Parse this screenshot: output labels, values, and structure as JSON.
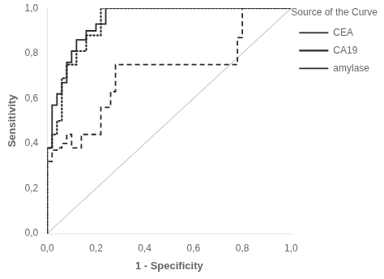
{
  "chart_data": {
    "type": "line",
    "xlabel": "1 - Specificity",
    "ylabel": "Sensitivity",
    "legend_title": "Source of the Curve",
    "legend": "right",
    "grid": false,
    "xlim": [
      0,
      1.0
    ],
    "ylim": [
      0,
      1.0
    ],
    "xticks": [
      {
        "value": 0.0,
        "label": "0,0"
      },
      {
        "value": 0.2,
        "label": "0,2"
      },
      {
        "value": 0.4,
        "label": "0,4"
      },
      {
        "value": 0.6,
        "label": "0,6"
      },
      {
        "value": 0.8,
        "label": "0,8"
      },
      {
        "value": 1.0,
        "label": "1,0"
      }
    ],
    "yticks": [
      {
        "value": 0.0,
        "label": "0,0"
      },
      {
        "value": 0.2,
        "label": "0,2"
      },
      {
        "value": 0.4,
        "label": "0,4"
      },
      {
        "value": 0.6,
        "label": "0,6"
      },
      {
        "value": 0.8,
        "label": "0,8"
      },
      {
        "value": 1.0,
        "label": "1,0"
      }
    ],
    "series": [
      {
        "color": "#b0b0b0",
        "line_style": "solid",
        "x": [
          0,
          1
        ],
        "values": [
          0,
          1
        ]
      },
      {
        "name": "CEA",
        "color": "#2a2a2a",
        "line_style": "solid",
        "x": [
          0.0,
          0.0,
          0.02,
          0.02,
          0.04,
          0.04,
          0.06,
          0.06,
          0.08,
          0.08,
          0.1,
          0.1,
          0.12,
          0.12,
          0.16,
          0.16,
          0.2,
          0.2,
          0.24,
          0.24,
          0.52,
          0.52,
          1.0
        ],
        "values": [
          0.0,
          0.38,
          0.38,
          0.57,
          0.57,
          0.62,
          0.62,
          0.67,
          0.67,
          0.76,
          0.76,
          0.81,
          0.81,
          0.86,
          0.86,
          0.9,
          0.9,
          0.93,
          0.93,
          1.0,
          1.0,
          1.0,
          1.0
        ]
      },
      {
        "name": "CA19",
        "color": "#2a2a2a",
        "line_style": "dotted",
        "x": [
          0.0,
          0.0,
          0.02,
          0.02,
          0.04,
          0.04,
          0.06,
          0.06,
          0.08,
          0.08,
          0.12,
          0.12,
          0.16,
          0.16,
          0.22,
          0.22,
          0.54,
          0.54,
          1.0
        ],
        "values": [
          0.0,
          0.38,
          0.38,
          0.44,
          0.44,
          0.5,
          0.5,
          0.69,
          0.69,
          0.75,
          0.75,
          0.81,
          0.81,
          0.88,
          0.88,
          1.0,
          1.0,
          1.0,
          1.0
        ]
      },
      {
        "name": "amylase",
        "color": "#2a2a2a",
        "line_style": "dashed",
        "x": [
          0.0,
          0.0,
          0.02,
          0.02,
          0.04,
          0.04,
          0.06,
          0.06,
          0.08,
          0.08,
          0.1,
          0.1,
          0.14,
          0.14,
          0.22,
          0.22,
          0.26,
          0.26,
          0.28,
          0.28,
          0.5,
          0.5,
          0.78,
          0.78,
          0.8,
          0.8,
          1.0
        ],
        "values": [
          0.0,
          0.32,
          0.32,
          0.37,
          0.37,
          0.38,
          0.38,
          0.4,
          0.4,
          0.44,
          0.44,
          0.38,
          0.38,
          0.44,
          0.44,
          0.56,
          0.56,
          0.63,
          0.63,
          0.75,
          0.75,
          0.75,
          0.75,
          0.87,
          0.87,
          1.0,
          1.0
        ]
      }
    ]
  }
}
